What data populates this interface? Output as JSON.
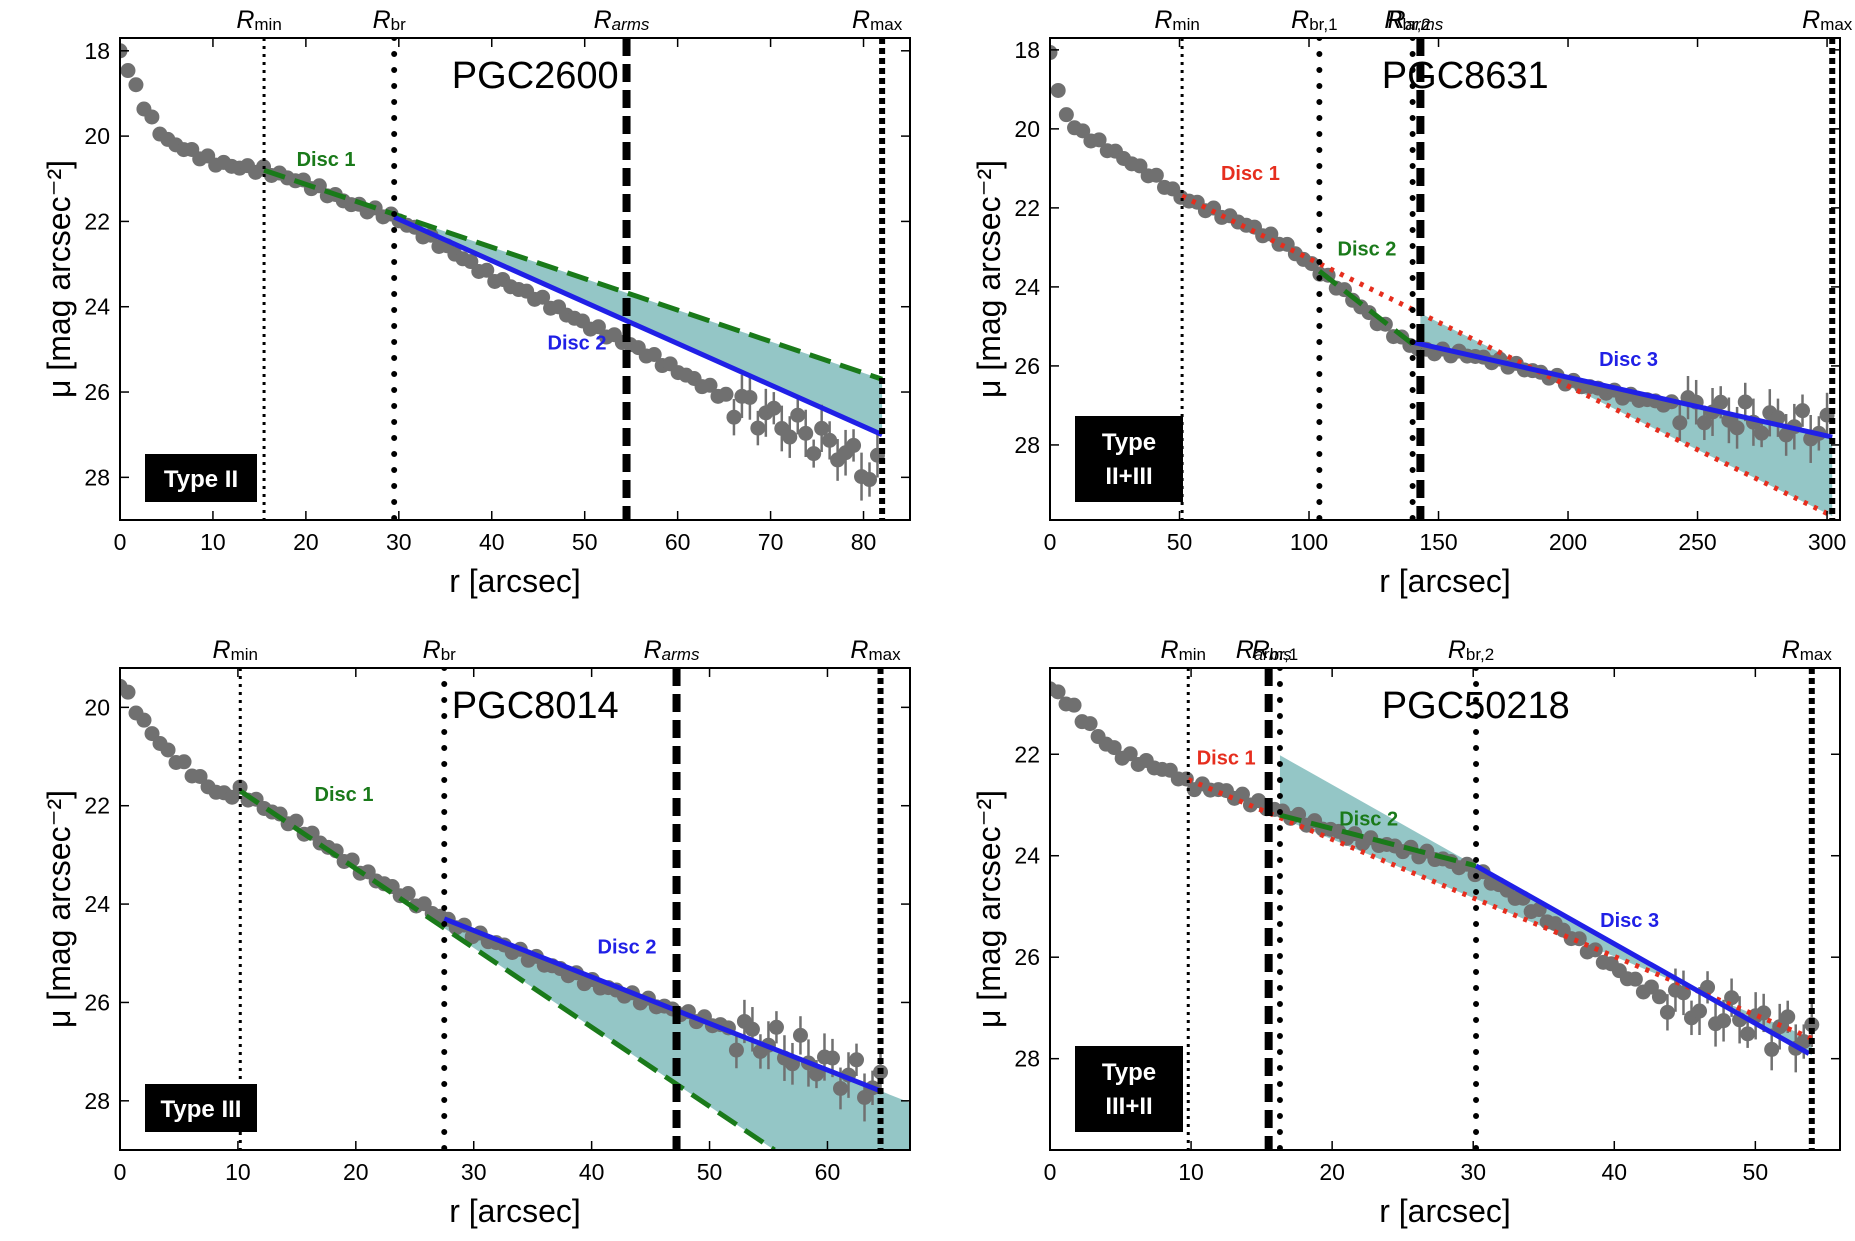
{
  "colors": {
    "points": "#707070",
    "disc_green": "#1a7a1a",
    "disc_blue": "#2020e6",
    "disc_red": "#e62e1e",
    "fill": "#5aa8a8",
    "label_box": "#000000",
    "label_text": "#ffffff"
  },
  "chart_data": [
    {
      "type": "scatter",
      "title": "PGC2600",
      "xlabel": "r [arcsec]",
      "ylabel": "μ [mag arcsec⁻²]",
      "xlim": [
        0,
        85
      ],
      "ylim": [
        29,
        17.7
      ],
      "xticks": [
        0,
        10,
        20,
        30,
        40,
        50,
        60,
        70,
        80
      ],
      "yticks": [
        18,
        20,
        22,
        24,
        26,
        28
      ],
      "type_label": [
        "Type II"
      ],
      "vlines": [
        {
          "x": 15.5,
          "label": "R",
          "sub": "min",
          "style": "fine-dotted"
        },
        {
          "x": 29.5,
          "label": "R",
          "sub": "br",
          "style": "dotted"
        },
        {
          "x": 54.5,
          "label": "R",
          "sub": "arms",
          "style": "dashed"
        },
        {
          "x": 82,
          "label": "R",
          "sub": "max",
          "style": "thick-dotted"
        }
      ],
      "profile": [
        [
          0,
          18
        ],
        [
          1,
          18.5
        ],
        [
          2,
          19.0
        ],
        [
          3,
          19.5
        ],
        [
          4,
          19.8
        ],
        [
          5,
          20.1
        ],
        [
          6,
          20.2
        ],
        [
          8,
          20.4
        ],
        [
          10,
          20.6
        ],
        [
          12,
          20.7
        ],
        [
          15.5,
          20.8
        ],
        [
          20,
          21.1
        ],
        [
          25,
          21.6
        ],
        [
          29.5,
          21.9
        ],
        [
          35,
          22.6
        ],
        [
          40,
          23.3
        ],
        [
          45,
          23.8
        ],
        [
          50,
          24.4
        ],
        [
          55,
          24.9
        ],
        [
          60,
          25.5
        ],
        [
          65,
          26.1
        ],
        [
          70,
          26.6
        ],
        [
          75,
          27.1
        ],
        [
          78,
          27.4
        ],
        [
          80,
          27.8
        ],
        [
          81.5,
          27.9
        ]
      ],
      "discs": [
        {
          "name": "Disc 1",
          "color": "green",
          "style": "dashed",
          "from": [
            15.5,
            20.8
          ],
          "to": [
            82,
            25.7
          ],
          "label_at": [
            19,
            20.7
          ]
        },
        {
          "name": "Disc 2",
          "color": "blue",
          "style": "solid",
          "from": [
            29.5,
            21.9
          ],
          "to": [
            82,
            27.0
          ],
          "label_at": [
            46,
            25.0
          ]
        }
      ],
      "fills": [
        {
          "between": [
            0,
            1
          ],
          "from_x": 29.5,
          "to_x": 82
        }
      ]
    },
    {
      "type": "scatter",
      "title": "PGC8631",
      "xlabel": "r [arcsec]",
      "ylabel": "μ [mag arcsec⁻²]",
      "xlim": [
        0,
        305
      ],
      "ylim": [
        29.9,
        17.7
      ],
      "xticks": [
        0,
        50,
        100,
        150,
        200,
        250,
        300
      ],
      "yticks": [
        18,
        20,
        22,
        24,
        26,
        28
      ],
      "type_label": [
        "Type",
        "II+III"
      ],
      "vlines": [
        {
          "x": 51,
          "label": "R",
          "sub": "min",
          "style": "fine-dotted"
        },
        {
          "x": 104,
          "label": "R",
          "sub": "br,1",
          "style": "dotted"
        },
        {
          "x": 140,
          "label": "R",
          "sub": "br,2",
          "style": "dotted"
        },
        {
          "x": 143,
          "label": "R",
          "sub": "arms",
          "style": "dashed"
        },
        {
          "x": 302,
          "label": "R",
          "sub": "max",
          "style": "thick-dotted"
        }
      ],
      "profile": [
        [
          0,
          18
        ],
        [
          2,
          18.8
        ],
        [
          5,
          19.5
        ],
        [
          10,
          20.0
        ],
        [
          20,
          20.4
        ],
        [
          30,
          20.8
        ],
        [
          40,
          21.2
        ],
        [
          50,
          21.7
        ],
        [
          60,
          22.0
        ],
        [
          75,
          22.4
        ],
        [
          90,
          22.9
        ],
        [
          104,
          23.6
        ],
        [
          115,
          24.2
        ],
        [
          125,
          24.8
        ],
        [
          135,
          25.3
        ],
        [
          143,
          25.6
        ],
        [
          160,
          25.7
        ],
        [
          180,
          26.0
        ],
        [
          200,
          26.4
        ],
        [
          225,
          26.8
        ],
        [
          250,
          27.1
        ],
        [
          275,
          27.4
        ],
        [
          300,
          27.6
        ]
      ],
      "discs": [
        {
          "name": "Disc 1",
          "color": "red",
          "style": "dotted",
          "from": [
            51,
            21.7
          ],
          "to": [
            302,
            29.8
          ],
          "label_at": [
            66,
            21.3
          ]
        },
        {
          "name": "Disc 2",
          "color": "green",
          "style": "dashed",
          "from": [
            104,
            23.6
          ],
          "to": [
            143,
            25.6
          ],
          "label_at": [
            111,
            23.2
          ]
        },
        {
          "name": "Disc 3",
          "color": "blue",
          "style": "solid",
          "from": [
            140,
            25.4
          ],
          "to": [
            302,
            27.8
          ],
          "label_at": [
            212,
            26.0
          ]
        }
      ],
      "fills": [
        {
          "between": [
            0,
            2
          ],
          "from_x": 143,
          "to_x": 302
        }
      ]
    },
    {
      "type": "scatter",
      "title": "PGC8014",
      "xlabel": "r [arcsec]",
      "ylabel": "μ [mag arcsec⁻²]",
      "xlim": [
        0,
        67
      ],
      "ylim": [
        29.0,
        19.2
      ],
      "xticks": [
        0,
        10,
        20,
        30,
        40,
        50,
        60
      ],
      "yticks": [
        20,
        22,
        24,
        26,
        28
      ],
      "type_label": [
        "Type III"
      ],
      "vlines": [
        {
          "x": 10.2,
          "label": "R",
          "sub": "min",
          "style": "fine-dotted"
        },
        {
          "x": 27.5,
          "label": "R",
          "sub": "br",
          "style": "dotted"
        },
        {
          "x": 47.2,
          "label": "R",
          "sub": "arms",
          "style": "dashed"
        },
        {
          "x": 64.5,
          "label": "R",
          "sub": "max",
          "style": "thick-dotted"
        }
      ],
      "profile": [
        [
          0,
          19.5
        ],
        [
          1,
          19.9
        ],
        [
          2,
          20.3
        ],
        [
          3,
          20.6
        ],
        [
          4,
          20.9
        ],
        [
          5,
          21.1
        ],
        [
          6,
          21.3
        ],
        [
          7,
          21.5
        ],
        [
          8,
          21.7
        ],
        [
          9,
          21.8
        ],
        [
          10.2,
          21.7
        ],
        [
          12,
          22.0
        ],
        [
          15,
          22.4
        ],
        [
          18,
          22.9
        ],
        [
          21,
          23.4
        ],
        [
          24,
          23.8
        ],
        [
          27.5,
          24.3
        ],
        [
          30,
          24.6
        ],
        [
          35,
          25.1
        ],
        [
          40,
          25.6
        ],
        [
          45,
          26.0
        ],
        [
          50,
          26.4
        ],
        [
          55,
          26.8
        ],
        [
          60,
          27.3
        ],
        [
          63,
          27.6
        ],
        [
          64.5,
          27.7
        ]
      ],
      "discs": [
        {
          "name": "Disc 1",
          "color": "green",
          "style": "dashed",
          "from": [
            10.2,
            21.7
          ],
          "to": [
            55.5,
            29.0
          ],
          "label_at": [
            16.5,
            21.9
          ]
        },
        {
          "name": "Disc 2",
          "color": "blue",
          "style": "solid",
          "from": [
            27.5,
            24.3
          ],
          "to": [
            64.5,
            27.8
          ],
          "label_at": [
            40.5,
            25.0
          ]
        }
      ],
      "fills": [
        {
          "between": [
            0,
            1
          ],
          "from_x": 27.5,
          "to_x": 67
        }
      ]
    },
    {
      "type": "scatter",
      "title": "PGC50218",
      "xlabel": "r [arcsec]",
      "ylabel": "μ [mag arcsec⁻²]",
      "xlim": [
        0,
        56
      ],
      "ylim": [
        29.8,
        20.3
      ],
      "xticks": [
        0,
        10,
        20,
        30,
        40,
        50
      ],
      "yticks": [
        22,
        24,
        26,
        28
      ],
      "type_label": [
        "Type",
        "III+II"
      ],
      "vlines": [
        {
          "x": 9.8,
          "label": "R",
          "sub": "min",
          "style": "fine-dotted"
        },
        {
          "x": 15.5,
          "label": "R",
          "sub": "arms",
          "style": "dashed"
        },
        {
          "x": 16.3,
          "label": "R",
          "sub": "br,1",
          "style": "dotted"
        },
        {
          "x": 30.2,
          "label": "R",
          "sub": "br,2",
          "style": "dotted"
        },
        {
          "x": 54,
          "label": "R",
          "sub": "max",
          "style": "thick-dotted"
        }
      ],
      "profile": [
        [
          0,
          20.7
        ],
        [
          1,
          20.9
        ],
        [
          2,
          21.2
        ],
        [
          3,
          21.5
        ],
        [
          4,
          21.8
        ],
        [
          5,
          22.0
        ],
        [
          7,
          22.2
        ],
        [
          9,
          22.4
        ],
        [
          9.8,
          22.6
        ],
        [
          12,
          22.7
        ],
        [
          15,
          23.0
        ],
        [
          18,
          23.3
        ],
        [
          21,
          23.6
        ],
        [
          24,
          23.8
        ],
        [
          27,
          24.0
        ],
        [
          30.2,
          24.3
        ],
        [
          33,
          24.8
        ],
        [
          36,
          25.4
        ],
        [
          39,
          26.0
        ],
        [
          42,
          26.6
        ],
        [
          45,
          26.9
        ],
        [
          48,
          27.1
        ],
        [
          51,
          27.4
        ],
        [
          54,
          27.6
        ]
      ],
      "discs": [
        {
          "name": "Disc 1",
          "color": "red",
          "style": "dotted",
          "from": [
            9.8,
            22.5
          ],
          "to": [
            54,
            27.6
          ],
          "label_at": [
            10.4,
            22.2
          ]
        },
        {
          "name": "Disc 2",
          "color": "green",
          "style": "dashed",
          "from": [
            16.3,
            23.2
          ],
          "to": [
            30.2,
            24.2
          ],
          "label_at": [
            20.5,
            23.4
          ]
        },
        {
          "name": "Disc 3",
          "color": "blue",
          "style": "solid",
          "from": [
            30.2,
            24.2
          ],
          "to": [
            53.8,
            27.9
          ],
          "label_at": [
            39,
            25.4
          ]
        }
      ],
      "fills": [
        {
          "between": [
            0,
            2
          ],
          "from_x": 16.3,
          "to_x": 54
        }
      ]
    }
  ]
}
